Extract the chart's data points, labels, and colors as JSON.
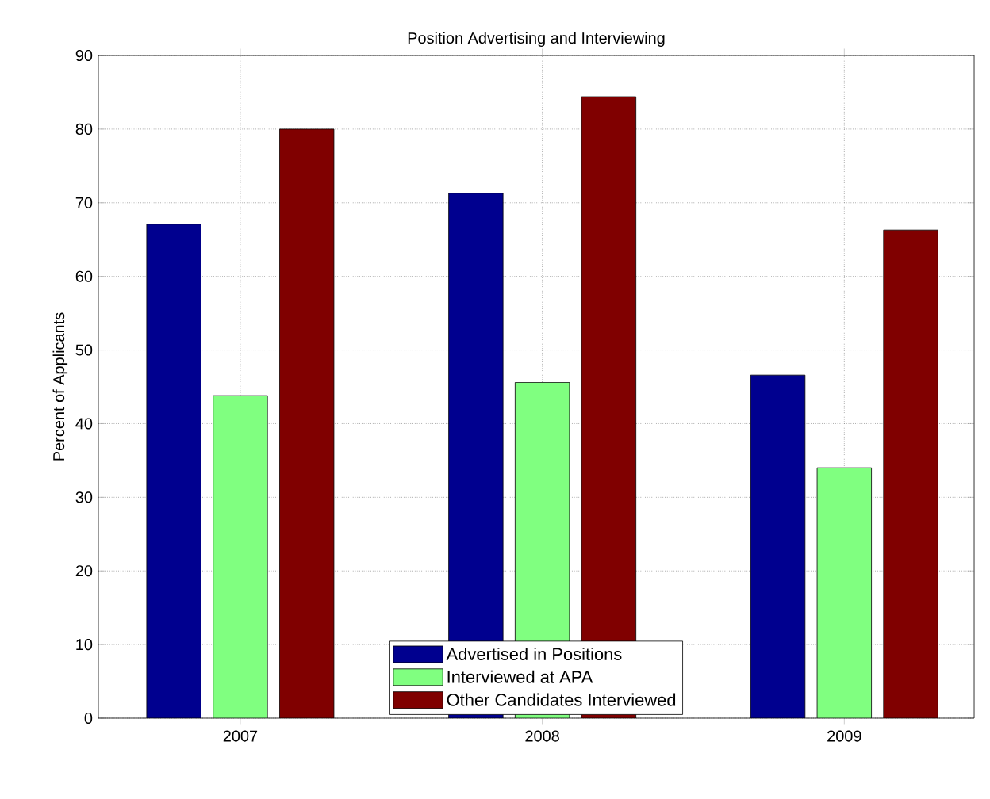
{
  "chart_data": {
    "type": "bar",
    "title": "Position Advertising and Interviewing",
    "ylabel": "Percent of Applicants",
    "categories": [
      "2007",
      "2008",
      "2009"
    ],
    "series": [
      {
        "name": "Advertised in Positions",
        "color": "#00008f",
        "values": [
          67.1,
          71.3,
          46.6
        ]
      },
      {
        "name": "Interviewed at APA",
        "color": "#80ff80",
        "values": [
          43.8,
          45.6,
          34.0
        ]
      },
      {
        "name": "Other Candidates Interviewed",
        "color": "#800000",
        "values": [
          80.0,
          84.4,
          66.3
        ]
      }
    ],
    "ylim": [
      0,
      90
    ],
    "yticks": [
      0,
      10,
      20,
      30,
      40,
      50,
      60,
      70,
      80,
      90
    ],
    "grid": true,
    "legend": "bottom"
  }
}
